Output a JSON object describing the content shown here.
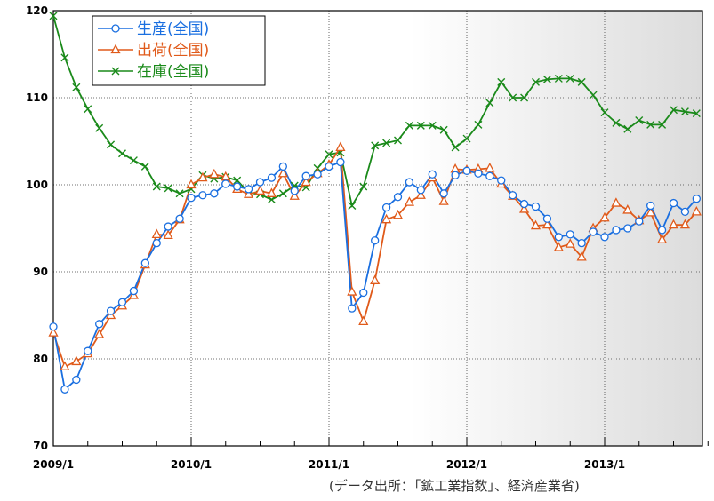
{
  "chart_data": {
    "type": "line",
    "x_start": "2009/1",
    "x_tick_labels": [
      "2009/1",
      "2010/1",
      "2011/1",
      "2012/1",
      "2013/1"
    ],
    "y_tick_labels": [
      "70",
      "80",
      "90",
      "100",
      "110",
      "120"
    ],
    "ylim": [
      70,
      120
    ],
    "y_ticks": [
      70,
      80,
      90,
      100,
      110,
      120
    ],
    "grid": true,
    "legend_placement": "top-left",
    "series": [
      {
        "name": "生産(全国)",
        "color": "#1a6fe0",
        "marker": "circle",
        "values": [
          83.7,
          76.5,
          77.6,
          80.9,
          84.0,
          85.5,
          86.5,
          87.8,
          91.0,
          93.3,
          95.2,
          96.1,
          98.5,
          98.8,
          99.0,
          100.1,
          99.8,
          99.5,
          100.3,
          100.8,
          102.1,
          99.3,
          101.0,
          101.2,
          102.1,
          102.6,
          85.8,
          87.6,
          93.6,
          97.4,
          98.6,
          100.3,
          99.4,
          101.2,
          99.0,
          101.1,
          101.6,
          101.3,
          101.0,
          100.5,
          98.8,
          97.8,
          97.5,
          96.1,
          94.0,
          94.3,
          93.3,
          94.6,
          94.0,
          94.8,
          95.0,
          95.8,
          97.6,
          94.8,
          97.9,
          96.9,
          98.4
        ]
      },
      {
        "name": "出荷(全国)",
        "color": "#e05a1a",
        "marker": "triangle",
        "values": [
          83.0,
          79.1,
          79.7,
          80.6,
          82.8,
          85.0,
          86.1,
          87.3,
          90.8,
          94.3,
          94.2,
          96.0,
          100.0,
          100.8,
          101.2,
          100.9,
          99.5,
          98.9,
          99.3,
          99.0,
          101.3,
          98.7,
          100.3,
          101.3,
          102.3,
          104.3,
          87.7,
          84.3,
          89.0,
          96.0,
          96.5,
          98.0,
          98.8,
          100.8,
          98.1,
          101.8,
          101.7,
          101.8,
          101.9,
          100.1,
          98.7,
          97.2,
          95.3,
          95.4,
          92.8,
          93.2,
          91.7,
          95.0,
          96.2,
          97.9,
          97.1,
          95.9,
          96.8,
          93.7,
          95.4,
          95.4,
          96.9
        ]
      },
      {
        "name": "在庫(全国)",
        "color": "#1a8a1a",
        "marker": "x",
        "values": [
          119.4,
          114.6,
          111.2,
          108.7,
          106.5,
          104.6,
          103.6,
          102.8,
          102.1,
          99.8,
          99.6,
          99.0,
          99.5,
          101.1,
          100.7,
          100.9,
          100.5,
          99.1,
          98.9,
          98.3,
          99.0,
          99.9,
          99.7,
          101.9,
          103.5,
          103.7,
          97.6,
          99.8,
          104.5,
          104.8,
          105.1,
          106.8,
          106.8,
          106.8,
          106.3,
          104.3,
          105.3,
          106.9,
          109.4,
          111.8,
          110.0,
          110.0,
          111.8,
          112.1,
          112.2,
          112.2,
          111.8,
          110.3,
          108.3,
          107.1,
          106.4,
          107.4,
          106.9,
          106.9,
          108.6,
          108.4,
          108.2
        ]
      }
    ]
  },
  "source_note": "(データ出所：「鉱工業指数」、経済産業省)"
}
